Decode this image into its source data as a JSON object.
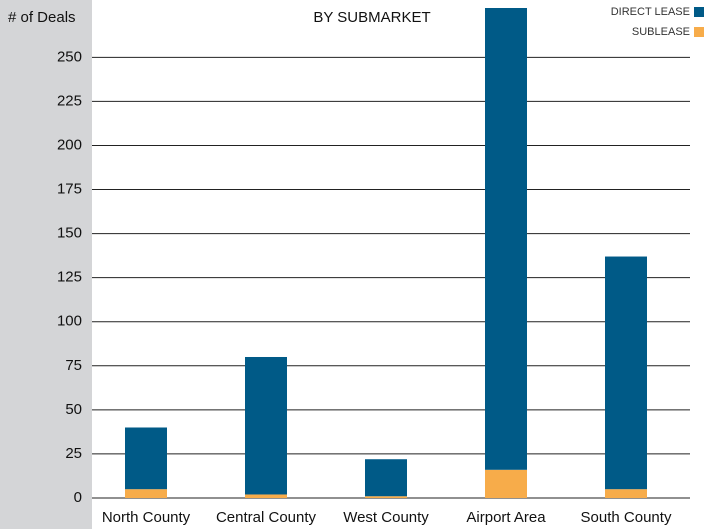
{
  "chart_data": {
    "type": "stacked_bar",
    "title": "BY SUBMARKET",
    "y_label": "# of Deals",
    "categories": [
      "North County",
      "Central County",
      "West County",
      "Airport Area",
      "South County"
    ],
    "series": [
      {
        "name": "DIRECT LEASE",
        "color": "#005a87",
        "values": [
          35,
          78,
          21,
          262,
          132
        ]
      },
      {
        "name": "SUBLEASE",
        "color": "#f7ac4a",
        "values": [
          5,
          2,
          1,
          16,
          5
        ]
      }
    ],
    "stack_order": [
      1,
      0
    ],
    "ylim": [
      0,
      278
    ],
    "yticks": [
      0,
      25,
      50,
      75,
      100,
      125,
      150,
      175,
      200,
      225,
      250
    ],
    "grid": true
  }
}
